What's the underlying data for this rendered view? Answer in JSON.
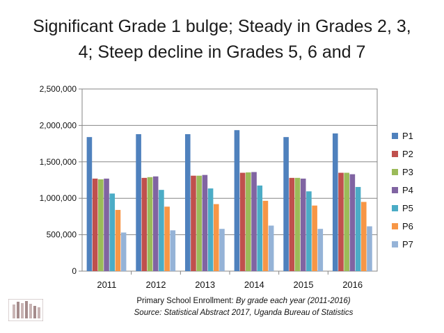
{
  "slide": {
    "title_line1": "Significant Grade 1 bulge; Steady in Grades 2, 3,",
    "title_line2": "4; Steep decline in Grades 5, 6 and 7",
    "caption_prefix": "Primary School Enrollment: ",
    "caption_italic": "By grade each year (2011-2016)",
    "source": "Source: Statistical Abstract 2017, Uganda Bureau of Statistics"
  },
  "chart_data": {
    "type": "bar",
    "title": "",
    "xlabel": "",
    "ylabel": "",
    "categories": [
      "2011",
      "2012",
      "2013",
      "2014",
      "2015",
      "2016"
    ],
    "ylim": [
      0,
      2500000
    ],
    "yticks": [
      0,
      500000,
      1000000,
      1500000,
      2000000,
      2500000
    ],
    "ytick_labels": [
      "0",
      "500,000",
      "1,000,000",
      "1,500,000",
      "2,000,000",
      "2,500,000"
    ],
    "grid": true,
    "legend_position": "right",
    "series": [
      {
        "name": "P1",
        "color": "#4F81BD",
        "values": [
          1840000,
          1880000,
          1880000,
          1935000,
          1840000,
          1890000
        ]
      },
      {
        "name": "P2",
        "color": "#C0504D",
        "values": [
          1270000,
          1280000,
          1310000,
          1350000,
          1280000,
          1350000
        ]
      },
      {
        "name": "P3",
        "color": "#9BBB59",
        "values": [
          1260000,
          1290000,
          1310000,
          1355000,
          1280000,
          1350000
        ]
      },
      {
        "name": "P4",
        "color": "#8064A2",
        "values": [
          1270000,
          1300000,
          1320000,
          1360000,
          1270000,
          1330000
        ]
      },
      {
        "name": "P5",
        "color": "#4BACC6",
        "values": [
          1065000,
          1115000,
          1135000,
          1175000,
          1095000,
          1155000
        ]
      },
      {
        "name": "P6",
        "color": "#F79646",
        "values": [
          840000,
          885000,
          920000,
          965000,
          900000,
          950000
        ]
      },
      {
        "name": "P7",
        "color": "#95B3D7",
        "values": [
          530000,
          560000,
          580000,
          625000,
          580000,
          615000
        ]
      }
    ]
  }
}
